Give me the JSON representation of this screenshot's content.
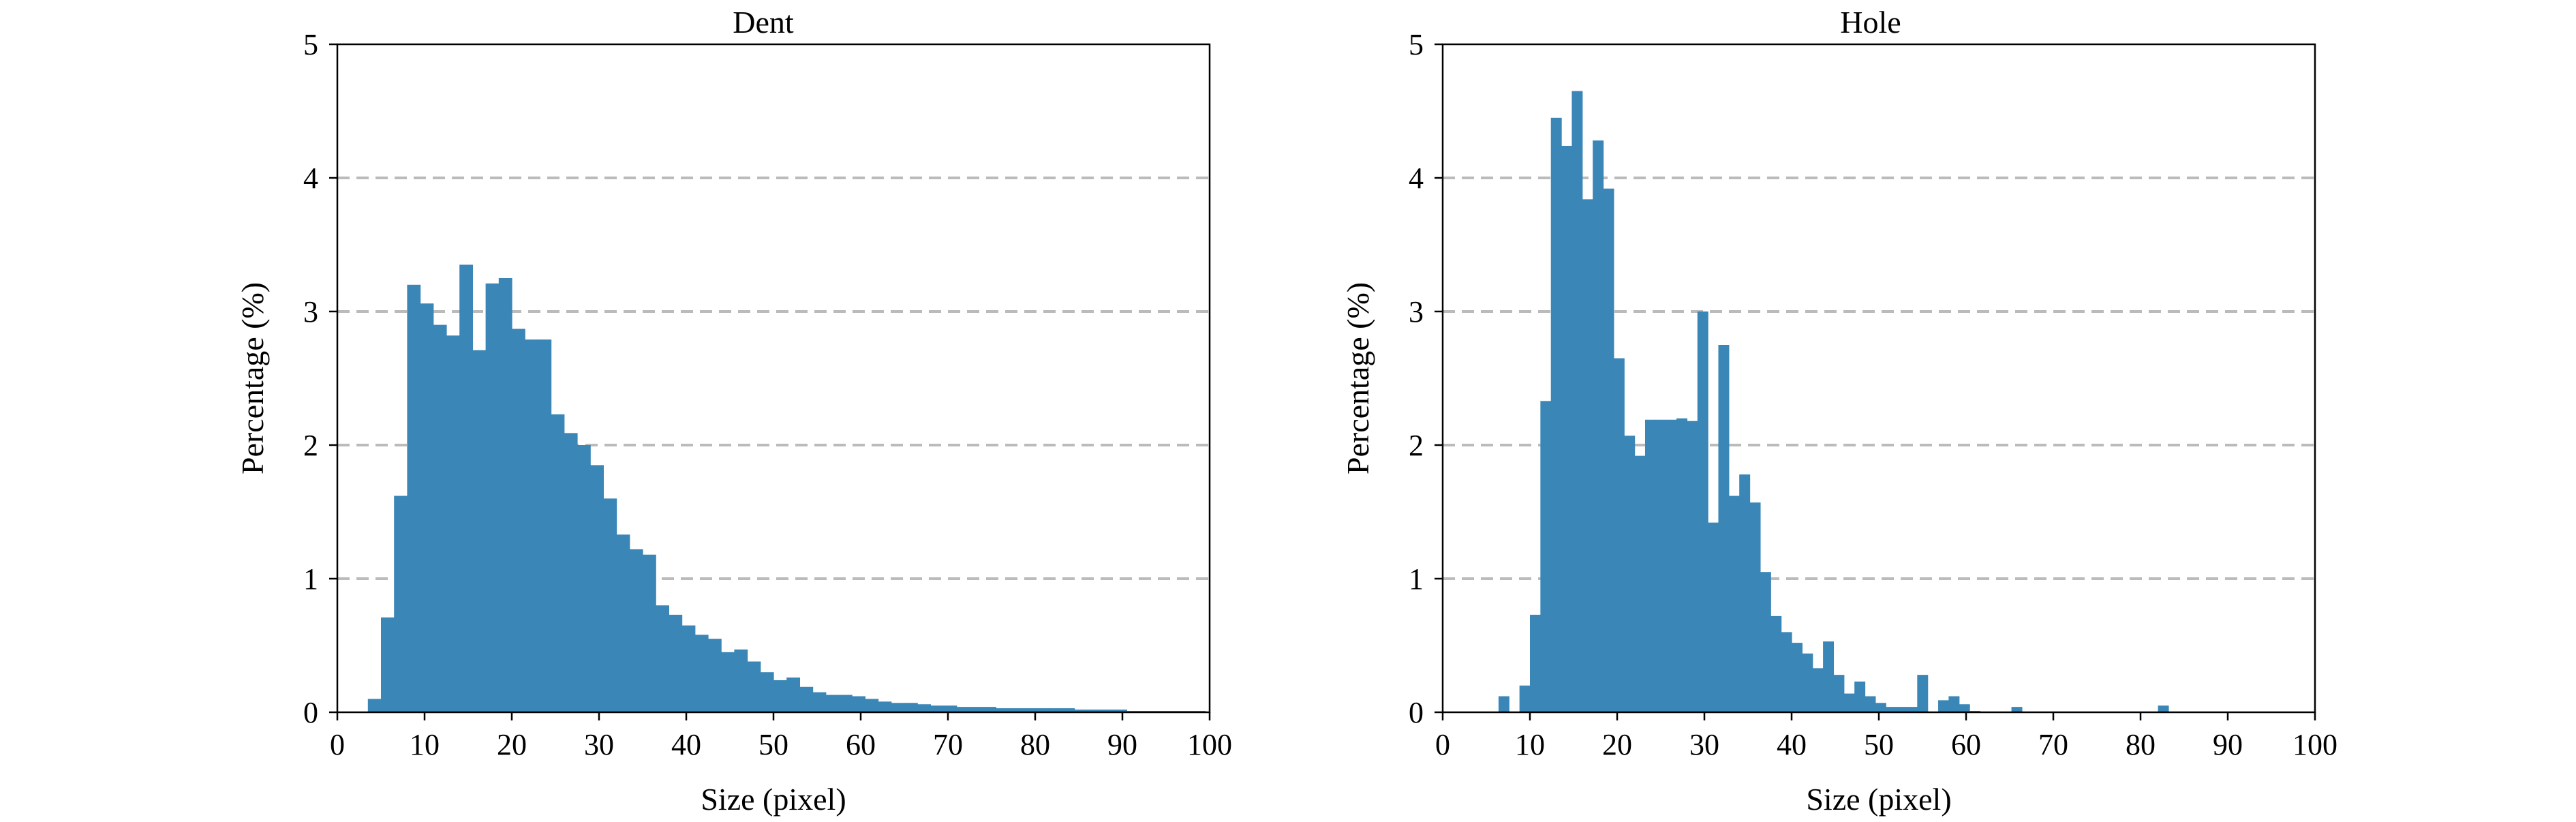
{
  "chart_data": [
    {
      "type": "bar",
      "title": "Dent",
      "xlabel": "Size (pixel)",
      "ylabel": "Percentage (%)",
      "xlim": [
        0,
        100
      ],
      "ylim": [
        0,
        5
      ],
      "xticks": [
        "0",
        "10",
        "20",
        "30",
        "40",
        "50",
        "60",
        "70",
        "80",
        "90",
        "100"
      ],
      "yticks": [
        "0",
        "1",
        "2",
        "3",
        "4",
        "5"
      ],
      "grid": "horizontal dashed",
      "color": "#3a86b7",
      "bin_width": 1.5,
      "bin_start": 3.5,
      "values": [
        0.1,
        0.71,
        1.62,
        3.2,
        3.06,
        2.9,
        2.82,
        3.35,
        2.71,
        3.21,
        3.25,
        2.87,
        2.79,
        2.79,
        2.23,
        2.09,
        2.0,
        1.85,
        1.6,
        1.33,
        1.22,
        1.18,
        0.8,
        0.73,
        0.65,
        0.58,
        0.55,
        0.45,
        0.47,
        0.38,
        0.3,
        0.24,
        0.26,
        0.19,
        0.15,
        0.13,
        0.13,
        0.12,
        0.1,
        0.08,
        0.07,
        0.07,
        0.06,
        0.05,
        0.05,
        0.04,
        0.04,
        0.04,
        0.03,
        0.03,
        0.03,
        0.03,
        0.03,
        0.03,
        0.02,
        0.02,
        0.02,
        0.02,
        0.01,
        0.01,
        0.01,
        0.01,
        0.01,
        0.01
      ]
    },
    {
      "type": "bar",
      "title": "Hole",
      "xlabel": "Size (pixel)",
      "ylabel": "Percentage (%)",
      "xlim": [
        0,
        100
      ],
      "ylim": [
        0,
        5
      ],
      "xticks": [
        "0",
        "10",
        "20",
        "30",
        "40",
        "50",
        "60",
        "70",
        "80",
        "90",
        "100"
      ],
      "yticks": [
        "0",
        "1",
        "2",
        "3",
        "4",
        "5"
      ],
      "grid": "horizontal dashed",
      "color": "#3a86b7",
      "bin_width": 1.2,
      "bin_start": 6.4,
      "values": [
        0.12,
        0.0,
        0.2,
        0.73,
        2.33,
        4.45,
        4.24,
        4.65,
        3.84,
        4.28,
        3.92,
        2.65,
        2.07,
        1.92,
        2.19,
        2.19,
        2.19,
        2.2,
        2.18,
        3.0,
        1.42,
        2.75,
        1.62,
        1.78,
        1.57,
        1.05,
        0.72,
        0.6,
        0.52,
        0.44,
        0.33,
        0.53,
        0.28,
        0.14,
        0.23,
        0.12,
        0.07,
        0.04,
        0.04,
        0.04,
        0.28,
        0.0,
        0.09,
        0.12,
        0.06,
        0.01,
        0.0,
        0.0,
        0.0,
        0.04,
        0.0,
        0.0,
        0.0,
        0.0,
        0.0,
        0.0,
        0.0,
        0.0,
        0.0,
        0.0,
        0.0,
        0.0,
        0.0,
        0.05
      ]
    }
  ]
}
